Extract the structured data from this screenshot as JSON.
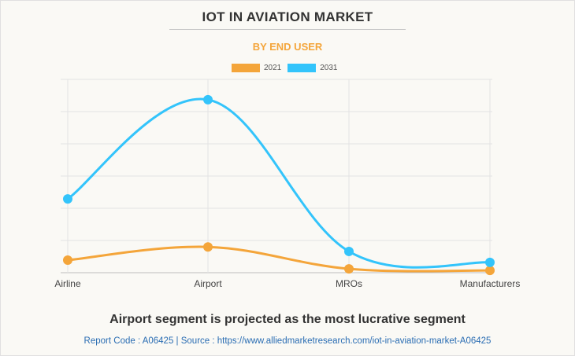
{
  "header": {
    "title": "IOT IN AVIATION MARKET",
    "subtitle": "BY END USER"
  },
  "chart_data": {
    "type": "line",
    "title": "IOT IN AVIATION MARKET",
    "subtitle": "BY END USER",
    "xlabel": "",
    "ylabel": "",
    "categories": [
      "Airline",
      "Airport",
      "MROs",
      "Manufacturers"
    ],
    "series": [
      {
        "name": "2021",
        "color": "#f4a53a",
        "values": [
          0.39,
          0.8,
          0.12,
          0.07
        ]
      },
      {
        "name": "2031",
        "color": "#33c4fb",
        "values": [
          2.29,
          5.37,
          0.66,
          0.32
        ]
      }
    ],
    "ylim": [
      0,
      6
    ],
    "y_tick_labels_shown": false,
    "grid": true,
    "smooth": true,
    "legend_position": "top-center"
  },
  "footer": {
    "headline": "Airport segment is projected as the most lucrative segment",
    "source": "Report Code : A06425  |  Source : https://www.alliedmarketresearch.com/iot-in-aviation-market-A06425"
  }
}
